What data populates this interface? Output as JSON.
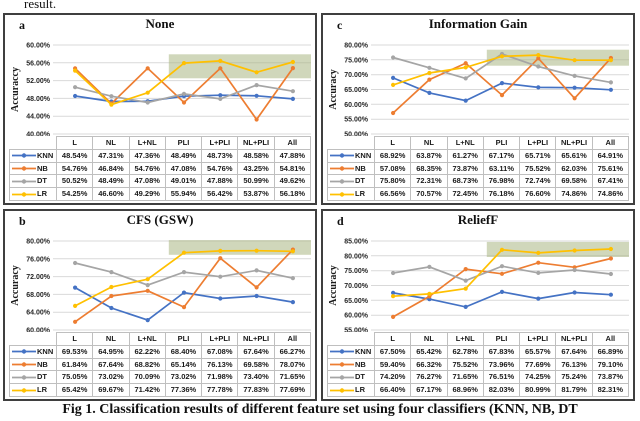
{
  "page": {
    "top_text_fragment": "result.",
    "caption": "Fig 1. Classification results of different feature set using four classifiers (KNN, NB, DT",
    "background_color": "#ffffff",
    "panel_border_color": "#3f3f3f",
    "gridline_color": "#d9d9d9",
    "highlight_color": "#a9b783",
    "table_border_color": "#bfbfbf"
  },
  "chart_data": [
    {
      "panel_label": "a",
      "type": "line",
      "title": "None",
      "ylabel": "Accuraccy",
      "xlabel": "",
      "ylim": [
        40,
        60
      ],
      "ytick_labels": [
        "60.00%",
        "56.00%",
        "52.00%",
        "48.00%",
        "44.00%",
        "40.00%"
      ],
      "categories": [
        "L",
        "NL",
        "L+NL",
        "PLI",
        "L+PLI",
        "NL+PLI",
        "All"
      ],
      "series": [
        {
          "name": "KNN",
          "color": "#4472C4",
          "values": [
            48.54,
            47.31,
            47.36,
            48.49,
            48.73,
            48.58,
            47.88
          ]
        },
        {
          "name": "NB",
          "color": "#ED7D31",
          "values": [
            54.76,
            46.84,
            54.76,
            47.08,
            54.76,
            43.25,
            54.81
          ]
        },
        {
          "name": "DT",
          "color": "#A5A5A5",
          "values": [
            50.52,
            48.49,
            47.08,
            49.01,
            47.88,
            50.99,
            49.62
          ]
        },
        {
          "name": "LR",
          "color": "#FFC000",
          "values": [
            54.25,
            46.6,
            49.29,
            55.94,
            56.42,
            53.87,
            56.18
          ]
        }
      ],
      "highlight_region": {
        "from_category": "PLI",
        "to_category": "All",
        "y_min": 52.5,
        "y_max": 57.9
      },
      "legend_position": "table-left",
      "grid": true
    },
    {
      "panel_label": "c",
      "type": "line",
      "title": "Information Gain",
      "ylabel": "Accuracy",
      "xlabel": "",
      "ylim": [
        50,
        80
      ],
      "ytick_labels": [
        "80.00%",
        "75.00%",
        "70.00%",
        "65.00%",
        "60.00%",
        "55.00%",
        "50.00%"
      ],
      "categories": [
        "L",
        "NL",
        "L+NL",
        "PLI",
        "L+PLI",
        "NL+PLI",
        "All"
      ],
      "series": [
        {
          "name": "KNN",
          "color": "#4472C4",
          "values": [
            68.92,
            63.87,
            61.27,
            67.17,
            65.71,
            65.61,
            64.91
          ]
        },
        {
          "name": "NB",
          "color": "#ED7D31",
          "values": [
            57.08,
            68.35,
            73.87,
            63.11,
            75.52,
            62.03,
            75.61
          ]
        },
        {
          "name": "DT",
          "color": "#A5A5A5",
          "values": [
            75.8,
            72.31,
            68.73,
            76.98,
            72.74,
            69.58,
            67.41
          ]
        },
        {
          "name": "LR",
          "color": "#FFC000",
          "values": [
            66.56,
            70.57,
            72.45,
            76.18,
            76.6,
            74.86,
            74.86
          ]
        }
      ],
      "highlight_region": {
        "from_category": "PLI",
        "to_category": "All",
        "y_min": 73.0,
        "y_max": 78.4
      },
      "legend_position": "table-left",
      "grid": true
    },
    {
      "panel_label": "b",
      "type": "line",
      "title": "CFS (GSW)",
      "ylabel": "Accuracy",
      "xlabel": "",
      "ylim": [
        60,
        80
      ],
      "ytick_labels": [
        "80.00%",
        "76.00%",
        "72.00%",
        "68.00%",
        "64.00%",
        "60.00%"
      ],
      "categories": [
        "L",
        "NL",
        "L+NL",
        "PLI",
        "L+PLI",
        "NL+PLI",
        "All"
      ],
      "series": [
        {
          "name": "KNN",
          "color": "#4472C4",
          "values": [
            69.53,
            64.95,
            62.22,
            68.4,
            67.08,
            67.64,
            66.27
          ]
        },
        {
          "name": "NB",
          "color": "#ED7D31",
          "values": [
            61.84,
            67.64,
            68.82,
            65.14,
            76.13,
            69.58,
            78.07
          ]
        },
        {
          "name": "DT",
          "color": "#A5A5A5",
          "values": [
            75.05,
            73.02,
            70.09,
            73.02,
            71.98,
            73.4,
            71.65
          ]
        },
        {
          "name": "LR",
          "color": "#FFC000",
          "values": [
            65.42,
            69.67,
            71.42,
            77.36,
            77.78,
            77.83,
            77.69
          ]
        }
      ],
      "highlight_region": {
        "from_category": "PLI",
        "to_category": "All",
        "y_min": 76.9,
        "y_max": 80.2
      },
      "legend_position": "table-left",
      "grid": true
    },
    {
      "panel_label": "d",
      "type": "line",
      "title": "ReliefF",
      "ylabel": "Accuracy",
      "xlabel": "",
      "ylim": [
        55,
        85
      ],
      "ytick_labels": [
        "85.00%",
        "80.00%",
        "75.00%",
        "70.00%",
        "65.00%",
        "60.00%",
        "55.00%"
      ],
      "categories": [
        "L",
        "NL",
        "L+NL",
        "PLI",
        "L+PLI",
        "NL+PLI",
        "All"
      ],
      "series": [
        {
          "name": "KNN",
          "color": "#4472C4",
          "values": [
            67.5,
            65.42,
            62.78,
            67.83,
            65.57,
            67.64,
            66.89
          ]
        },
        {
          "name": "NB",
          "color": "#ED7D31",
          "values": [
            59.4,
            66.32,
            75.52,
            73.96,
            77.69,
            76.13,
            79.1
          ]
        },
        {
          "name": "DT",
          "color": "#A5A5A5",
          "values": [
            74.2,
            76.27,
            71.65,
            76.51,
            74.25,
            75.24,
            73.87
          ]
        },
        {
          "name": "LR",
          "color": "#FFC000",
          "values": [
            66.4,
            67.17,
            68.96,
            82.03,
            80.99,
            81.79,
            82.31
          ]
        }
      ],
      "highlight_region": {
        "from_category": "PLI",
        "to_category": "All",
        "y_min": 79.6,
        "y_max": 84.7
      },
      "legend_position": "table-left",
      "grid": true
    }
  ]
}
